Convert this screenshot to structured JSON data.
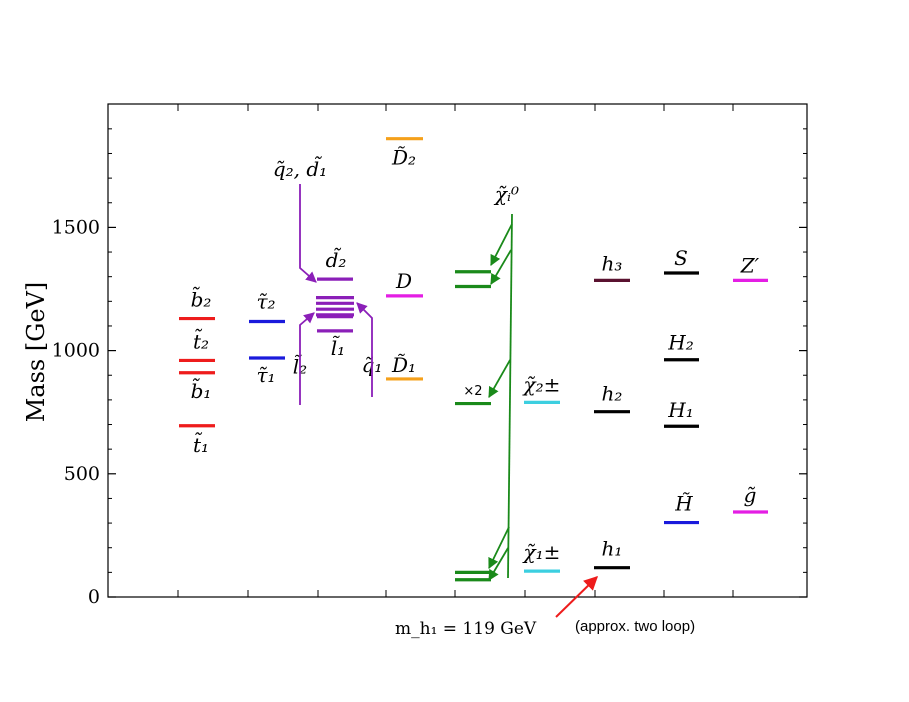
{
  "chart_data": {
    "type": "level_diagram",
    "ylabel": "Mass [GeV]",
    "ylim": [
      0,
      1960
    ],
    "yticks": [
      0,
      500,
      1000,
      1500
    ],
    "grid": false,
    "columns": [
      {
        "name": "sbottom-stop",
        "levels": [
          {
            "label": "b̃₂",
            "value": 1130,
            "color": "#ee1c1c"
          },
          {
            "label": "t̃₂",
            "value": 960,
            "color": "#ee1c1c"
          },
          {
            "label": "b̃₁",
            "value": 910,
            "color": "#ee1c1c"
          },
          {
            "label": "t̃₁",
            "value": 695,
            "color": "#ee1c1c"
          }
        ]
      },
      {
        "name": "stau",
        "levels": [
          {
            "label": "τ̃₂",
            "value": 1118,
            "color": "#1a1adc"
          },
          {
            "label": "τ̃₁",
            "value": 970,
            "color": "#1a1adc"
          }
        ]
      },
      {
        "name": "squark-slepton",
        "levels": [
          {
            "label": "d̃₂",
            "value": 1290,
            "color": "#8b1fb8"
          },
          {
            "label": "q̃₂, d̃₁",
            "value": 1215,
            "color": "#8b1fb8"
          },
          {
            "label": "",
            "value": 1192,
            "color": "#8b1fb8"
          },
          {
            "label": "",
            "value": 1168,
            "color": "#8b1fb8"
          },
          {
            "label": "q̃₁",
            "value": 1145,
            "color": "#8b1fb8"
          },
          {
            "label": "l̃₂",
            "value": 1138,
            "color": "#8b1fb8"
          },
          {
            "label": "l̃₁",
            "value": 1080,
            "color": "#8b1fb8"
          }
        ]
      },
      {
        "name": "exotic-quarks",
        "levels": [
          {
            "label": "D̃₂",
            "value": 1860,
            "color": "#f5a01a"
          },
          {
            "label": "D",
            "value": 1222,
            "color": "#e41ee4"
          },
          {
            "label": "D̃₁",
            "value": 885,
            "color": "#f5a01a"
          }
        ]
      },
      {
        "name": "neutralino",
        "label": "χ̃ᵢ⁰",
        "multiplicity_label": "×2",
        "levels": [
          {
            "value": 1320,
            "color": "#1a8a1a"
          },
          {
            "value": 1260,
            "color": "#1a8a1a"
          },
          {
            "value": 785,
            "color": "#1a8a1a"
          },
          {
            "value": 100,
            "color": "#1a8a1a"
          },
          {
            "value": 70,
            "color": "#1a8a1a"
          }
        ]
      },
      {
        "name": "chargino",
        "levels": [
          {
            "label": "χ̃₂±",
            "value": 790,
            "color": "#3ccfe0"
          },
          {
            "label": "χ̃₁±",
            "value": 105,
            "color": "#3ccfe0"
          }
        ]
      },
      {
        "name": "higgs-h",
        "levels": [
          {
            "label": "h₃",
            "value": 1285,
            "color": "#5a1230"
          },
          {
            "label": "h₂",
            "value": 752,
            "color": "#000000"
          },
          {
            "label": "h₁",
            "value": 119,
            "color": "#000000"
          }
        ]
      },
      {
        "name": "higgs-S-H",
        "levels": [
          {
            "label": "S",
            "value": 1315,
            "color": "#000000"
          },
          {
            "label": "H₂",
            "value": 963,
            "color": "#000000"
          },
          {
            "label": "H₁",
            "value": 693,
            "color": "#000000"
          },
          {
            "label": "H̃",
            "value": 302,
            "color": "#1a1adc"
          }
        ]
      },
      {
        "name": "zprime-gluino",
        "levels": [
          {
            "label": "Z′",
            "value": 1285,
            "color": "#e41ee4"
          },
          {
            "label": "g̃",
            "value": 345,
            "color": "#e41ee4"
          }
        ]
      }
    ],
    "annotation": {
      "math": "m_h₁ = 119 GeV",
      "text": "(approx. two loop)"
    }
  }
}
